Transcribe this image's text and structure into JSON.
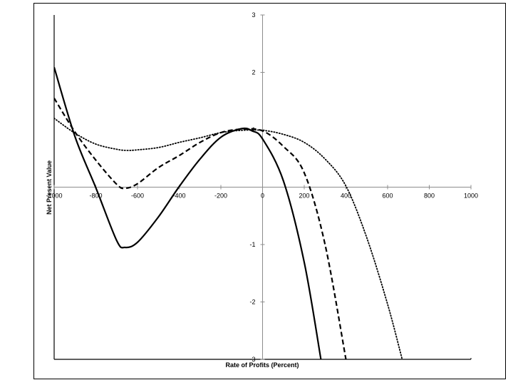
{
  "chart_data": {
    "type": "line",
    "title": "",
    "xlabel": "Rate of Profits (Percent)",
    "ylabel": "Net Present Value",
    "xlim": [
      -1000,
      1000
    ],
    "ylim": [
      -3,
      3
    ],
    "x_ticks": [
      -1000,
      -800,
      -600,
      -400,
      -200,
      0,
      200,
      400,
      600,
      800,
      1000
    ],
    "x_tick_labels": [
      "-1000",
      "-800",
      "-600",
      "-400",
      "-200",
      "0",
      "200",
      "400",
      "600",
      "800",
      "1000"
    ],
    "y_ticks": [
      -3,
      -2,
      -1,
      0,
      1,
      2,
      3
    ],
    "y_tick_labels": [
      "-3",
      "-2",
      "-1",
      "0",
      "1",
      "2",
      "3"
    ],
    "grid": false,
    "legend": "none",
    "series": [
      {
        "style": "solid",
        "color": "#000000",
        "x": [
          -1000,
          -900,
          -800,
          -700,
          -660,
          -600,
          -500,
          -400,
          -300,
          -200,
          -100,
          -50,
          0,
          100,
          200,
          280
        ],
        "values": [
          2.09,
          0.88,
          -0.01,
          -0.93,
          -1.05,
          -0.96,
          -0.52,
          0.01,
          0.49,
          0.87,
          1.02,
          0.98,
          0.84,
          0.11,
          -1.31,
          -3.0
        ]
      },
      {
        "style": "dashed",
        "color": "#000000",
        "x": [
          -1000,
          -900,
          -800,
          -700,
          -660,
          -600,
          -500,
          -400,
          -300,
          -200,
          -100,
          0,
          100,
          200,
          300,
          400
        ],
        "values": [
          1.55,
          0.96,
          0.47,
          0.05,
          -0.02,
          0.06,
          0.34,
          0.55,
          0.78,
          0.95,
          1.01,
          0.98,
          0.71,
          0.25,
          -1.0,
          -3.0
        ]
      },
      {
        "style": "dotted",
        "color": "#000000",
        "x": [
          -1000,
          -900,
          -800,
          -700,
          -650,
          -600,
          -500,
          -400,
          -300,
          -200,
          -100,
          0,
          100,
          200,
          300,
          400,
          500,
          600,
          670
        ],
        "values": [
          1.2,
          0.94,
          0.75,
          0.66,
          0.64,
          0.65,
          0.69,
          0.78,
          0.86,
          0.95,
          0.99,
          0.99,
          0.92,
          0.78,
          0.49,
          0.02,
          -0.88,
          -2.04,
          -3.0
        ]
      }
    ]
  }
}
